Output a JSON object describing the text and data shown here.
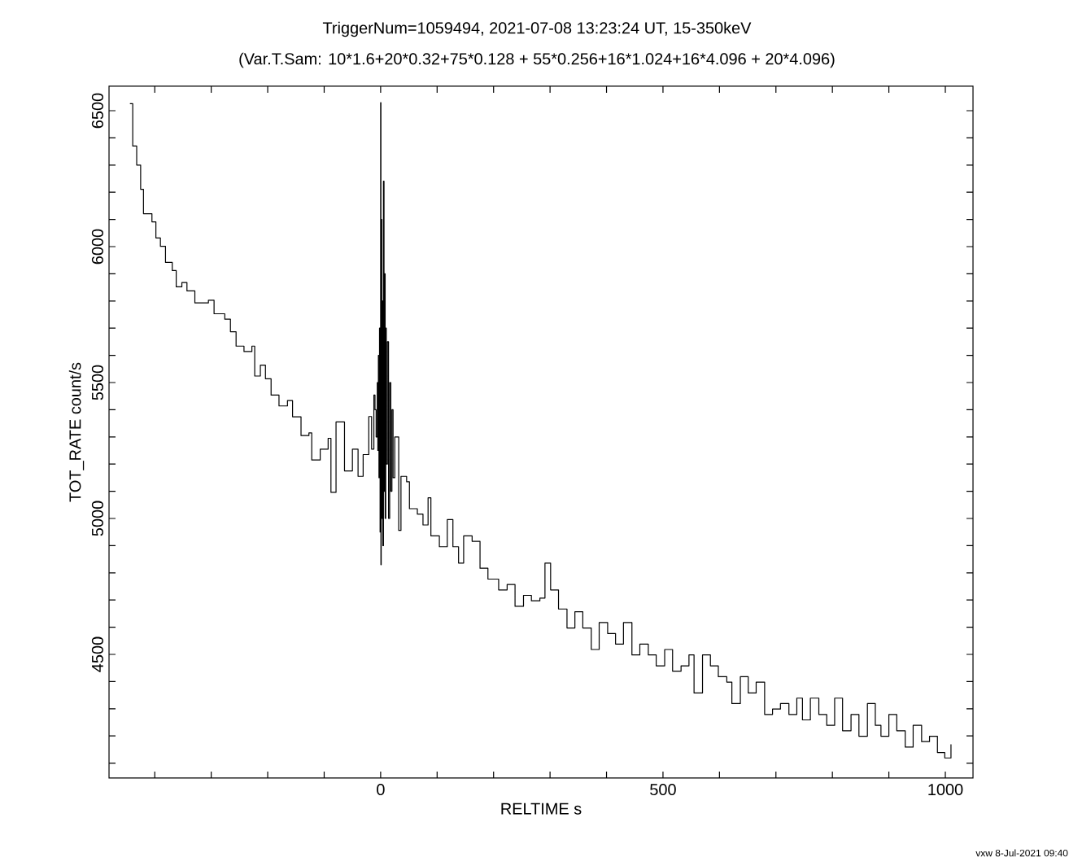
{
  "chart_data": {
    "type": "step",
    "title": "TriggerNum=1059494, 2021-07-08 13:23:24 UT, 15-350keV",
    "subtitle": "(Var.T.Sam:  10*1.6+20*0.32+75*0.128   +   55*0.256+16*1.024+16*4.096   +   20*4.096)",
    "xlabel": "RELTIME   s",
    "ylabel": "TOT_RATE   count/s",
    "annotations": [
      "vxw  8-Jul-2021 09:40"
    ],
    "xlim": [
      -481,
      1049
    ],
    "ylim": [
      4045,
      6590
    ],
    "xticks": [
      {
        "value": -400,
        "label": null
      },
      {
        "value": -300,
        "label": null
      },
      {
        "value": -200,
        "label": null
      },
      {
        "value": -100,
        "label": null
      },
      0,
      {
        "value": 100,
        "label": null
      },
      {
        "value": 200,
        "label": null
      },
      {
        "value": 300,
        "label": null
      },
      {
        "value": 400,
        "label": null
      },
      500,
      {
        "value": 600,
        "label": null
      },
      {
        "value": 700,
        "label": null
      },
      {
        "value": 800,
        "label": null
      },
      {
        "value": 900,
        "label": null
      },
      1000
    ],
    "yticks": [
      {
        "value": 4100,
        "label": null
      },
      {
        "value": 4200,
        "label": null
      },
      {
        "value": 4300,
        "label": null
      },
      {
        "value": 4400,
        "label": null
      },
      4500,
      {
        "value": 4600,
        "label": null
      },
      {
        "value": 4700,
        "label": null
      },
      {
        "value": 4800,
        "label": null
      },
      {
        "value": 4900,
        "label": null
      },
      5000,
      {
        "value": 5100,
        "label": null
      },
      {
        "value": 5200,
        "label": null
      },
      {
        "value": 5300,
        "label": null
      },
      {
        "value": 5400,
        "label": null
      },
      5500,
      {
        "value": 5600,
        "label": null
      },
      {
        "value": 5700,
        "label": null
      },
      {
        "value": 5800,
        "label": null
      },
      {
        "value": 5900,
        "label": null
      },
      6000,
      {
        "value": 6100,
        "label": null
      },
      {
        "value": 6200,
        "label": null
      },
      {
        "value": 6300,
        "label": null
      },
      {
        "value": 6400,
        "label": null
      },
      6500
    ],
    "series": [
      {
        "color": "#000000",
        "x": [
          -444,
          -439,
          -432,
          -425,
          -420,
          -405,
          -398,
          -390,
          -381,
          -369,
          -362,
          -352,
          -343,
          -329,
          -305,
          -295,
          -276,
          -266,
          -256,
          -242,
          -228,
          -223,
          -213,
          -204,
          -194,
          -180,
          -165,
          -156,
          -141,
          -127,
          -122,
          -107,
          -93,
          -88,
          -79,
          -64,
          -50,
          -40,
          -31,
          -21,
          -16,
          -12,
          -10,
          -8,
          -6,
          -5,
          -4,
          -3,
          -2,
          -1,
          0,
          0.5,
          1,
          2,
          3,
          4,
          5,
          6,
          7,
          8,
          9,
          10,
          12,
          14,
          16,
          18,
          20,
          22,
          25,
          32,
          36,
          46,
          51,
          65,
          75,
          84,
          89,
          104,
          118,
          128,
          138,
          147,
          162,
          176,
          190,
          209,
          224,
          238,
          253,
          267,
          282,
          291,
          301,
          315,
          330,
          344,
          358,
          373,
          387,
          402,
          416,
          430,
          445,
          459,
          474,
          488,
          503,
          517,
          532,
          546,
          555,
          570,
          584,
          598,
          613,
          622,
          637,
          651,
          665,
          680,
          694,
          708,
          723,
          737,
          747,
          761,
          776,
          790,
          804,
          818,
          833,
          847,
          862,
          876,
          886,
          900,
          914,
          929,
          943,
          958,
          972,
          986,
          999,
          1010
        ],
        "values": [
          6526,
          6370,
          6300,
          6211,
          6121,
          6091,
          6032,
          6001,
          5942,
          5912,
          5852,
          5868,
          5837,
          5793,
          5803,
          5753,
          5733,
          5687,
          5634,
          5614,
          5634,
          5524,
          5564,
          5514,
          5454,
          5414,
          5434,
          5374,
          5305,
          5315,
          5215,
          5255,
          5295,
          5096,
          5355,
          5175,
          5255,
          5155,
          5235,
          5375,
          5255,
          5454,
          5400,
          5300,
          5500,
          5250,
          5600,
          5150,
          5700,
          4950,
          6530,
          4830,
          6100,
          5000,
          5800,
          4900,
          6241,
          5100,
          5900,
          5000,
          5700,
          5200,
          5650,
          5000,
          5500,
          5100,
          5400,
          5150,
          5300,
          4956,
          5155,
          5135,
          5036,
          5016,
          4976,
          5076,
          4936,
          4896,
          4996,
          4896,
          4836,
          4936,
          4916,
          4817,
          4777,
          4737,
          4757,
          4677,
          4717,
          4697,
          4707,
          4836,
          4737,
          4667,
          4597,
          4657,
          4597,
          4518,
          4617,
          4577,
          4538,
          4617,
          4498,
          4538,
          4498,
          4458,
          4518,
          4438,
          4458,
          4498,
          4358,
          4498,
          4458,
          4418,
          4398,
          4319,
          4418,
          4358,
          4398,
          4279,
          4299,
          4319,
          4279,
          4339,
          4259,
          4339,
          4279,
          4239,
          4339,
          4219,
          4279,
          4199,
          4319,
          4239,
          4199,
          4279,
          4219,
          4159,
          4239,
          4179,
          4199,
          4139,
          4119,
          4169
        ]
      }
    ]
  }
}
